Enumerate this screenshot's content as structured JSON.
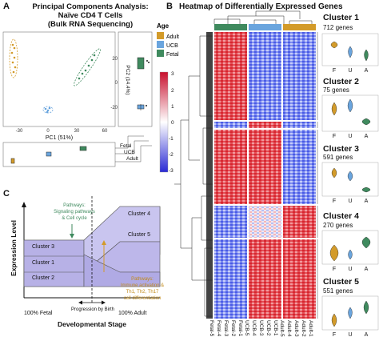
{
  "panel_a": {
    "letter": "A",
    "title_lines": [
      "Principal Components Analysis:",
      "Naïve CD4 T Cells",
      "(Bulk RNA Sequencing)"
    ],
    "xlabel": "PC1 (51%)",
    "ylabel": "PC2 (14.4%)",
    "xticks": [
      "-30",
      "0",
      "30",
      "60"
    ],
    "yticks": [
      "20",
      "0",
      "-20"
    ],
    "bottom_labels": [
      "Fetal",
      "UCB",
      "Adult"
    ]
  },
  "legend": {
    "title": "Age",
    "items": [
      {
        "label": "Adult",
        "color": "#d39b2a"
      },
      {
        "label": "UCB",
        "color": "#6aa5de"
      },
      {
        "label": "Fetal",
        "color": "#3f8a5e"
      }
    ]
  },
  "colorbar": {
    "ticks": [
      "3",
      "2",
      "1",
      "0",
      "-1",
      "-2",
      "-3"
    ]
  },
  "panel_b": {
    "letter": "B",
    "title": "Heatmap of Differentially Expressed Genes",
    "sample_labels": [
      "Fetal-5",
      "Fetal-4",
      "Fetal-3",
      "Fetal-2",
      "Fetal-1",
      "UCB-5",
      "UCB-4",
      "UCB-3",
      "UCB-2",
      "UCB-1",
      "Adult-5",
      "Adult-4",
      "Adult-3",
      "Adult-2",
      "Adult-1"
    ]
  },
  "clusters": [
    {
      "title": "Cluster 1",
      "count": "712 genes"
    },
    {
      "title": "Cluster 2",
      "count": "75 genes"
    },
    {
      "title": "Cluster 3",
      "count": "591 genes"
    },
    {
      "title": "Cluster 4",
      "count": "270 genes"
    },
    {
      "title": "Cluster 5",
      "count": "551 genes"
    }
  ],
  "violin_xticks": [
    "F",
    "U",
    "A"
  ],
  "panel_c": {
    "letter": "C",
    "ylabel": "Expression Level",
    "xlabel": "Developmental Stage",
    "left_label": "100% Fetal",
    "right_label": "100% Adult",
    "mid_label": "Progression by Birth",
    "pathway_green": [
      "Pathways:",
      "Signaling pathways",
      "& Cell cycle"
    ],
    "pathway_orange": [
      "Pathways:",
      "Immune activation &",
      "Th1, Th2, Th17",
      "cell differentiation"
    ],
    "cluster_labels": [
      "Cluster 3",
      "Cluster 1",
      "Cluster 2",
      "Cluster 4",
      "Cluster 5"
    ]
  }
}
